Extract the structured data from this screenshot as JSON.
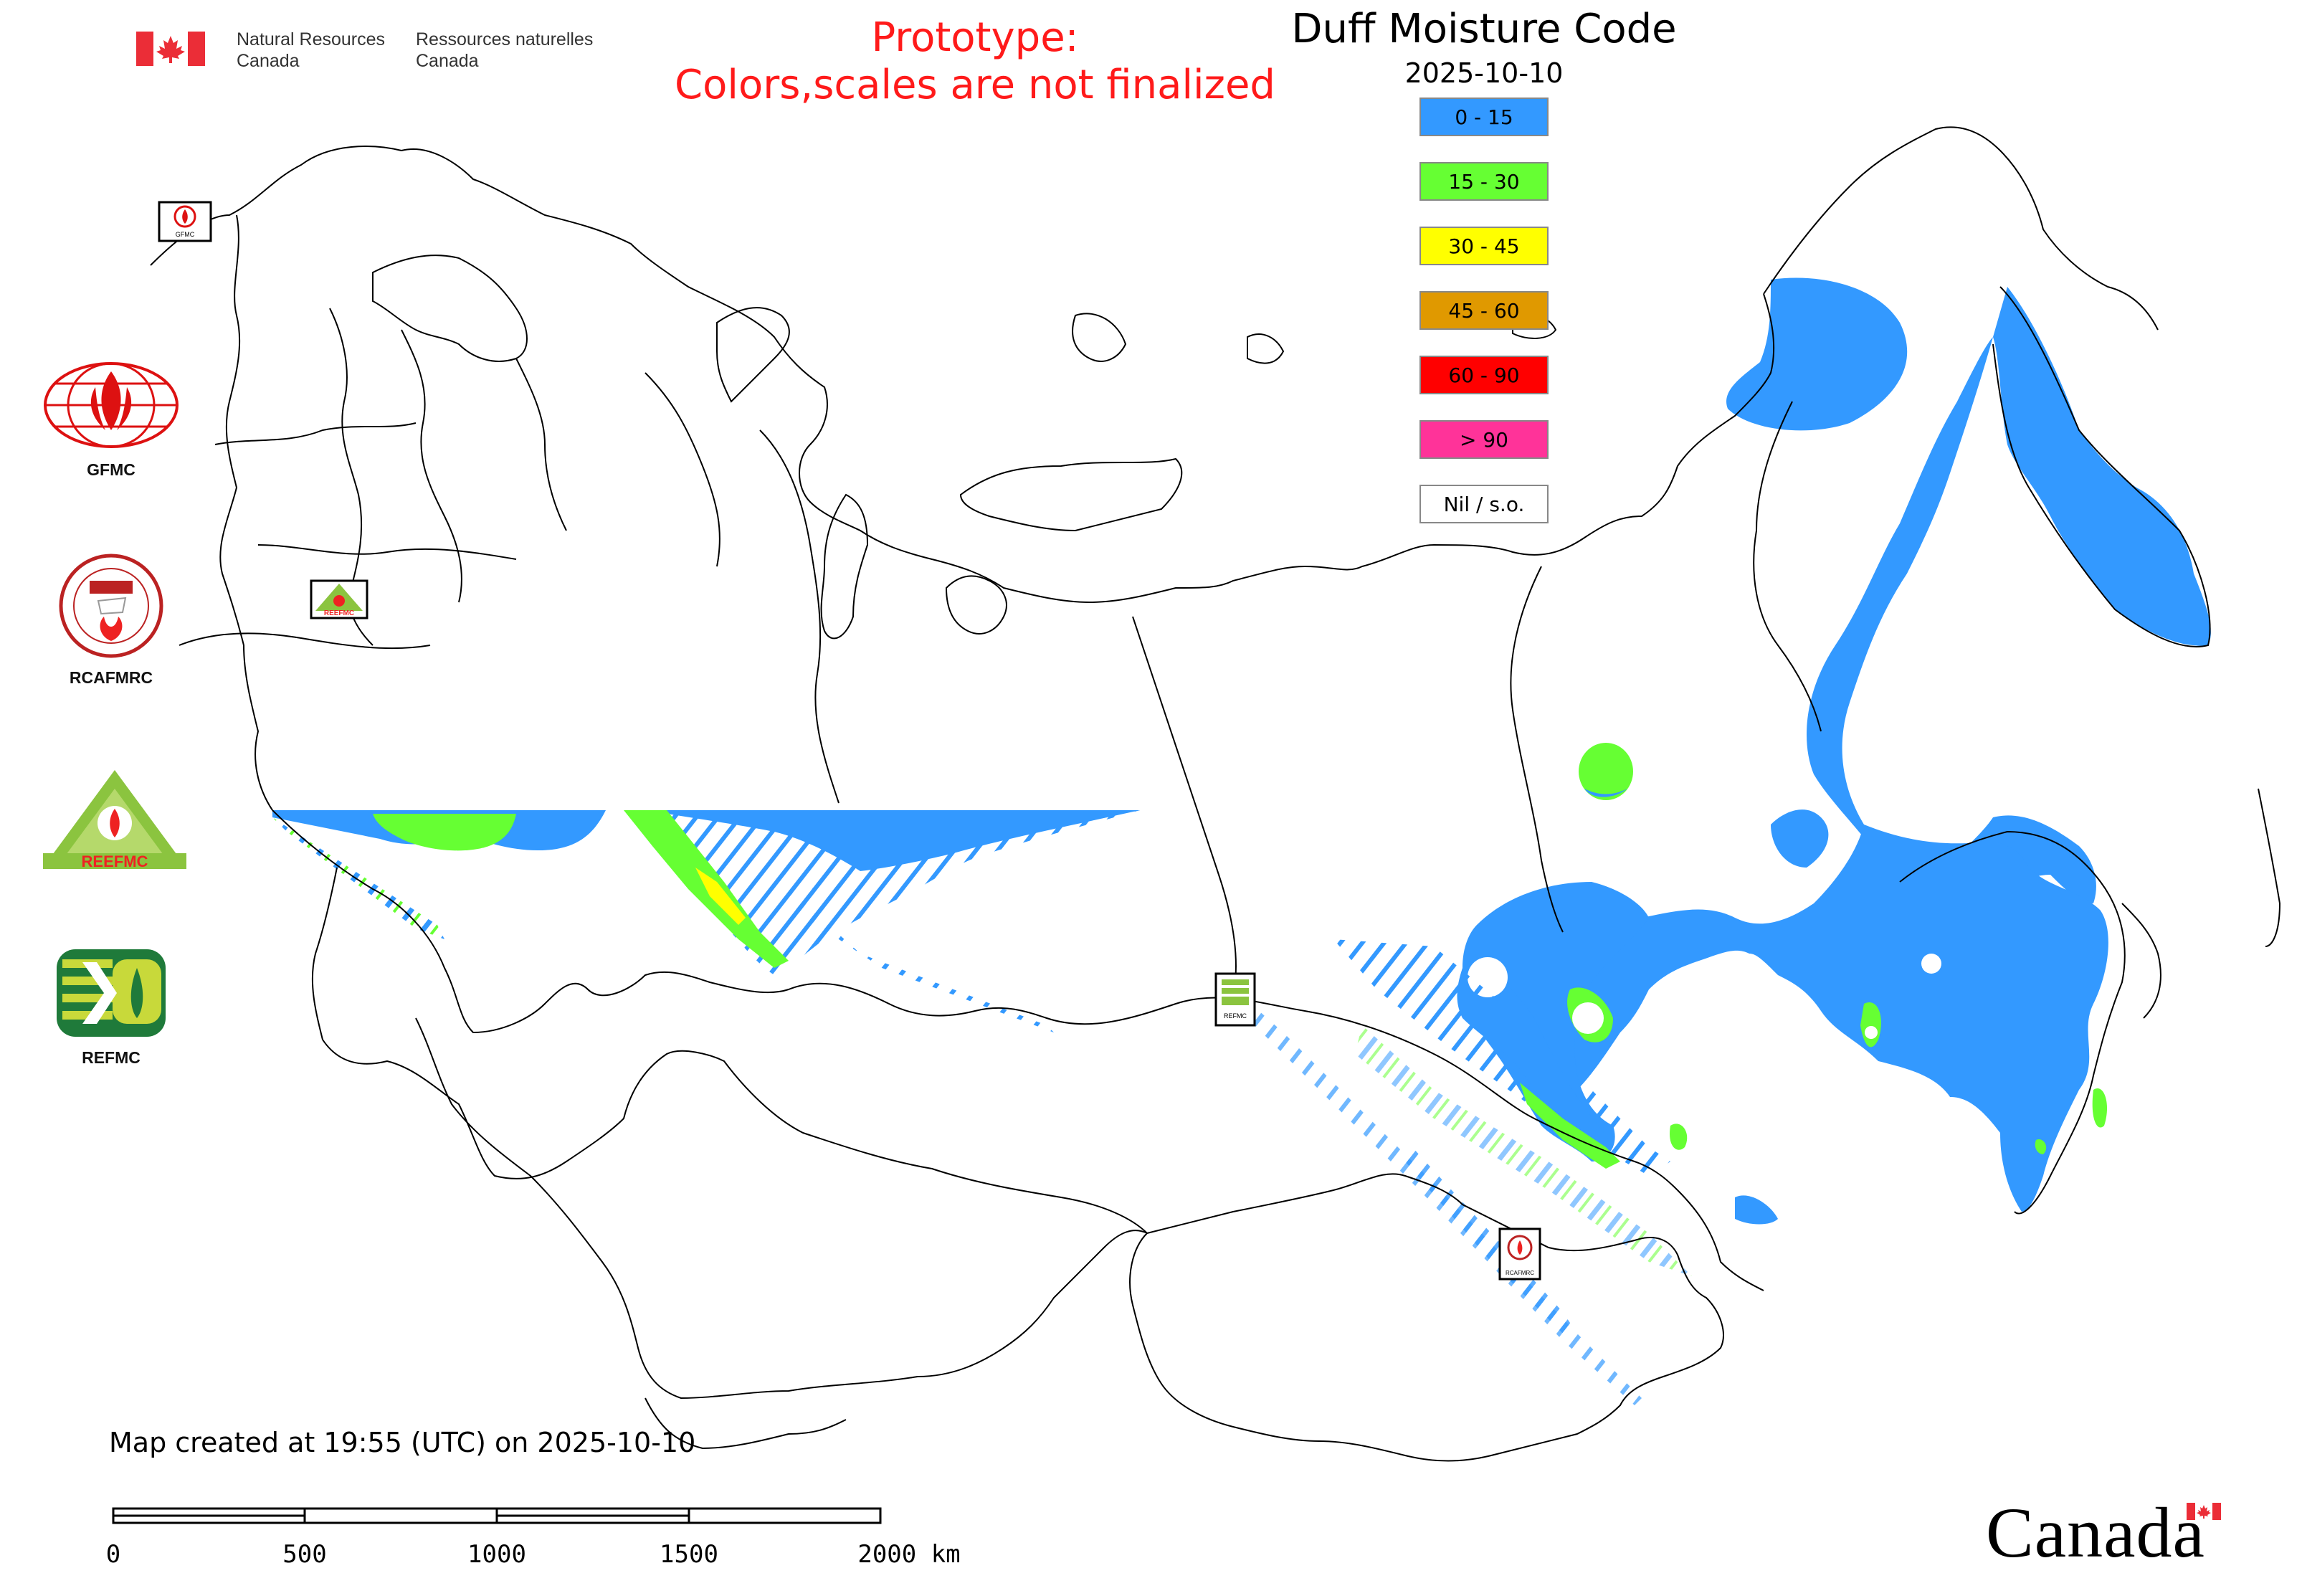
{
  "header": {
    "dept_en_line1": "Natural Resources",
    "dept_en_line2": "Canada",
    "dept_fr_line1": "Ressources naturelles",
    "dept_fr_line2": "Canada"
  },
  "notice": {
    "line1": "Prototype:",
    "line2": "Colors,scales are not finalized"
  },
  "legend": {
    "title": "Duff Moisture Code",
    "date": "2025-10-10",
    "classes": [
      {
        "label": "0 - 15",
        "color": "#3399ff"
      },
      {
        "label": "15 - 30",
        "color": "#66ff33"
      },
      {
        "label": "30 - 45",
        "color": "#ffff00"
      },
      {
        "label": "45 - 60",
        "color": "#e09900"
      },
      {
        "label": "60 - 90",
        "color": "#ff0000"
      },
      {
        "label": "> 90",
        "color": "#ff3399"
      },
      {
        "label": "Nil / s.o.",
        "color": "#ffffff"
      }
    ]
  },
  "partners": {
    "gfmc": "GFMC",
    "rcafmrc": "RCAFMRC",
    "reefmc": "REEFMC",
    "refmc": "REFMC",
    "map_markers": {
      "gfmc": "GFMC",
      "reefmc": "REEFMC",
      "refmc": "REFMC",
      "rcafmrc": "RCAFMRC"
    }
  },
  "footer": {
    "map_created": "Map created at 19:55 (UTC) on 2025-10-10",
    "scale_labels": [
      "0",
      "500",
      "1000",
      "1500",
      "2000 km"
    ],
    "wordmark": "Canada"
  }
}
